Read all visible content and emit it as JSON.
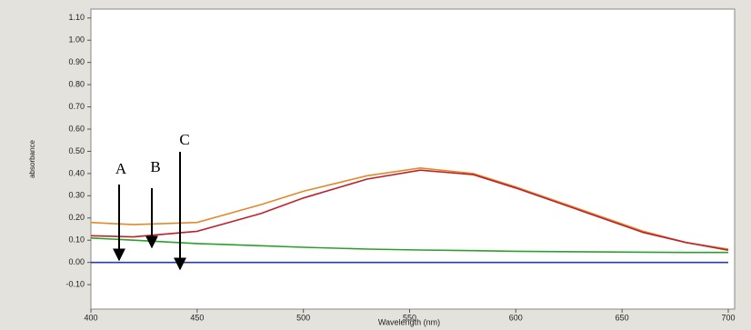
{
  "chart_data": {
    "type": "line",
    "xlabel": "Wavelength (nm)",
    "ylabel": "absorbance",
    "x": [
      400,
      420,
      450,
      480,
      500,
      530,
      555,
      580,
      600,
      630,
      660,
      680,
      700
    ],
    "series": [
      {
        "color": "#e08a2a",
        "values": [
          0.18,
          0.17,
          0.18,
          0.26,
          0.32,
          0.39,
          0.425,
          0.4,
          0.34,
          0.24,
          0.14,
          0.09,
          0.06
        ]
      },
      {
        "color": "#c0202a",
        "values": [
          0.12,
          0.115,
          0.14,
          0.22,
          0.29,
          0.375,
          0.415,
          0.395,
          0.335,
          0.235,
          0.135,
          0.09,
          0.055
        ]
      },
      {
        "color": "#2aa02a",
        "values": [
          0.11,
          0.1,
          0.085,
          0.075,
          0.068,
          0.06,
          0.056,
          0.053,
          0.05,
          0.048,
          0.046,
          0.045,
          0.045
        ]
      },
      {
        "color": "#2a3aa0",
        "values": [
          0,
          0,
          0,
          0,
          0,
          0,
          0,
          0,
          0,
          0,
          0,
          0,
          0
        ]
      }
    ],
    "xlim": [
      400,
      703
    ],
    "xticks": [
      400,
      450,
      500,
      550,
      600,
      650,
      700
    ],
    "ylim": [
      -0.21,
      1.14
    ],
    "yticks": [
      {
        "value": -0.1,
        "label": "-0.10"
      },
      {
        "value": 0,
        "label": "0.00"
      },
      {
        "value": 0.1,
        "label": "0.10"
      },
      {
        "value": 0.2,
        "label": "0.20"
      },
      {
        "value": 0.3,
        "label": "0.30"
      },
      {
        "value": 0.4,
        "label": "0.40"
      },
      {
        "value": 0.5,
        "label": "0.50"
      },
      {
        "value": 0.6,
        "label": "0.60"
      },
      {
        "value": 0.7,
        "label": "0.70"
      },
      {
        "value": 0.8,
        "label": "0.80"
      },
      {
        "value": 0.9,
        "label": "0.90"
      },
      {
        "value": 1.0,
        "label": "1.00"
      },
      {
        "value": 1.1,
        "label": "1.10"
      }
    ],
    "annotations": [
      "A",
      "B",
      "C"
    ]
  }
}
